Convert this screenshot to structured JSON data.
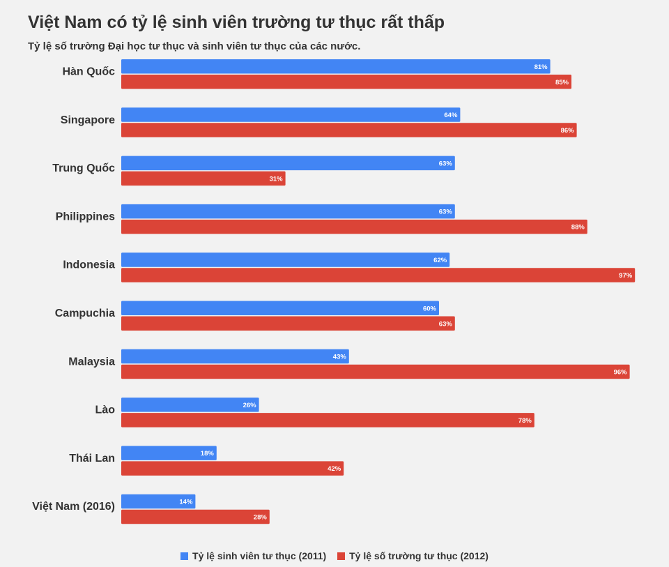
{
  "chart_data": {
    "type": "bar",
    "orientation": "horizontal",
    "title": "Việt Nam có tỷ lệ sinh viên trường tư thục rất thấp",
    "subtitle": "Tỷ lệ số trường Đại học tư thục và sinh viên tư thục của các nước.",
    "categories": [
      "Hàn Quốc",
      "Singapore",
      "Trung Quốc",
      "Philippines",
      "Indonesia",
      "Campuchia",
      "Malaysia",
      "Lào",
      "Thái Lan",
      "Việt Nam (2016)"
    ],
    "series": [
      {
        "name": "Tỷ lệ sinh viên tư thục (2011)",
        "color": "#4285f4",
        "values": [
          81,
          64,
          63,
          63,
          62,
          60,
          43,
          26,
          18,
          14
        ],
        "labels": [
          "81%",
          "64%",
          "63%",
          "63%",
          "62%",
          "60%",
          "43%",
          "26%",
          "18%",
          "14%"
        ]
      },
      {
        "name": "Tỷ lệ số trường tư thục (2012)",
        "color": "#db4437",
        "values": [
          85,
          86,
          31,
          88,
          97,
          63,
          96,
          78,
          42,
          28
        ],
        "labels": [
          "85%",
          "86%",
          "31%",
          "88%",
          "97%",
          "63%",
          "96%",
          "78%",
          "42%",
          "28%"
        ]
      }
    ],
    "xlim": [
      0,
      100
    ],
    "grid": false,
    "legend": "bottom"
  }
}
